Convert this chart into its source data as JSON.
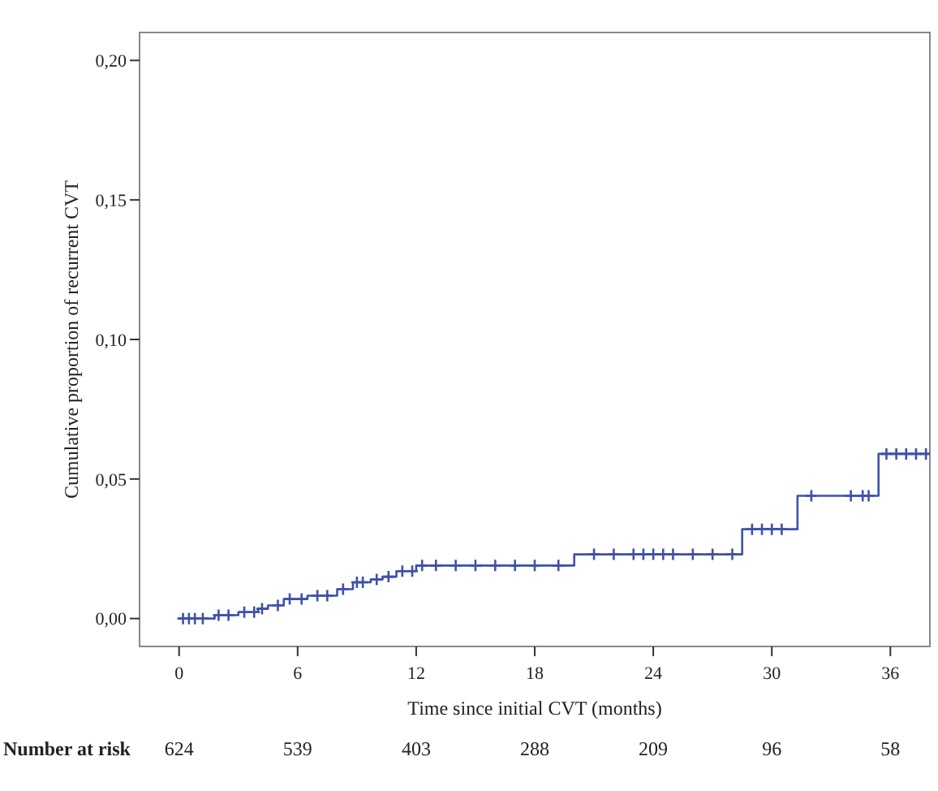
{
  "chart_data": {
    "type": "step",
    "xlabel": "Time since initial CVT (months)",
    "ylabel": "Cumulative proportion of recurrent CVT",
    "xlim": [
      -2,
      38
    ],
    "xticks": [
      0,
      6,
      12,
      18,
      24,
      30,
      36
    ],
    "ylim": [
      -0.01,
      0.21
    ],
    "yticks": [
      {
        "value": 0,
        "label": "0,00"
      },
      {
        "value": 0.05,
        "label": "0,05"
      },
      {
        "value": 0.1,
        "label": "0,10"
      },
      {
        "value": 0.15,
        "label": "0,15"
      },
      {
        "value": 0.2,
        "label": "0,20"
      }
    ],
    "grid": false,
    "series": [
      {
        "color": "#3f51a8",
        "x": [
          0,
          1.8,
          3,
          4,
          4.5,
          5.3,
          6.5,
          8,
          8.8,
          9.7,
          10.3,
          11,
          12,
          20,
          28.5,
          31.3,
          35.4,
          38
        ],
        "values": [
          0,
          0.0012,
          0.0023,
          0.0035,
          0.0047,
          0.007,
          0.0082,
          0.0105,
          0.013,
          0.014,
          0.015,
          0.017,
          0.019,
          0.023,
          0.032,
          0.044,
          0.059,
          0.059
        ]
      },
      {
        "type": "scatter",
        "marker": "cross",
        "color": "#3f51a8",
        "x": [
          0.2,
          0.5,
          0.8,
          1.2,
          2,
          2.5,
          3.3,
          3.8,
          4.2,
          5,
          5.6,
          6.2,
          7,
          7.5,
          8.3,
          9,
          9.3,
          10,
          10.6,
          11.3,
          11.8,
          12.3,
          13,
          14,
          15,
          16,
          17,
          18,
          19.2,
          21,
          22,
          23,
          23.5,
          24,
          24.5,
          25,
          26,
          27,
          28,
          29,
          29.5,
          30,
          30.5,
          32,
          34,
          34.6,
          34.9,
          35.8,
          36.3,
          36.8,
          37.3,
          37.8
        ],
        "values": [
          0,
          0,
          0,
          0,
          0.0012,
          0.0012,
          0.0023,
          0.0023,
          0.0035,
          0.0047,
          0.007,
          0.007,
          0.0082,
          0.0082,
          0.0105,
          0.013,
          0.013,
          0.014,
          0.015,
          0.017,
          0.017,
          0.019,
          0.019,
          0.019,
          0.019,
          0.019,
          0.019,
          0.019,
          0.019,
          0.023,
          0.023,
          0.023,
          0.023,
          0.023,
          0.023,
          0.023,
          0.023,
          0.023,
          0.023,
          0.032,
          0.032,
          0.032,
          0.032,
          0.044,
          0.044,
          0.044,
          0.044,
          0.059,
          0.059,
          0.059,
          0.059,
          0.059
        ]
      }
    ],
    "annotations": [
      "Number at risk",
      "624",
      "539",
      "403",
      "288",
      "209",
      "96",
      "58"
    ]
  }
}
